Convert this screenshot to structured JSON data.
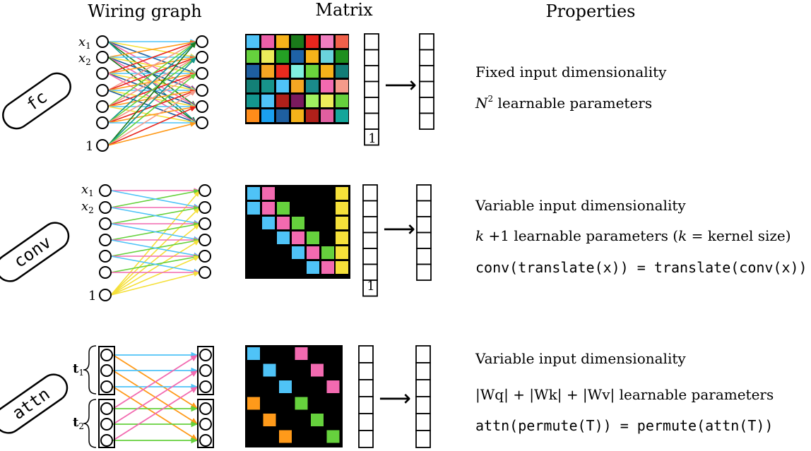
{
  "headers": {
    "wiring": "Wiring graph",
    "matrix": "Matrix",
    "properties": "Properties"
  },
  "rows": [
    {
      "id": "fc",
      "pill_label": "fc",
      "input_labels": {
        "x1": "x",
        "x1_sub": "1",
        "x2": "x",
        "x2_sub": "2",
        "bias": "1"
      },
      "vector_bias_label": "1",
      "arrow": "⟶",
      "properties": [
        {
          "text": "Fixed input dimensionality"
        },
        {
          "math": "N",
          "sup": "2",
          "text": " learnable parameters"
        }
      ],
      "matrix_colors": [
        [
          "#4fc3f7",
          "#ec5fa8",
          "#f5b21a",
          "#1a7a1a",
          "#e8261e",
          "#f07ec0",
          "#f0604a"
        ],
        [
          "#66d13d",
          "#ecec5a",
          "#24a024",
          "#1e62a6",
          "#f5b21a",
          "#6ad3dd",
          "#1f8f1f"
        ],
        [
          "#1e5fa0",
          "#f5a623",
          "#e82a1e",
          "#80f0e0",
          "#6ad33d",
          "#f5b21a",
          "#137d77"
        ],
        [
          "#138077",
          "#17948b",
          "#4fc3f7",
          "#f5a623",
          "#1a8a8a",
          "#f26ab0",
          "#f59a8a"
        ],
        [
          "#13968e",
          "#4fc3f7",
          "#b0201a",
          "#7a1a5e",
          "#a0f060",
          "#ecec5a",
          "#66d13d"
        ],
        [
          "#ff8c1a",
          "#1aa0f0",
          "#1e5fa0",
          "#f5b21a",
          "#b0201a",
          "#e05fa0",
          "#13a69a"
        ]
      ]
    },
    {
      "id": "conv",
      "pill_label": "conv",
      "input_labels": {
        "x1": "x",
        "x1_sub": "1",
        "x2": "x",
        "x2_sub": "2",
        "bias": "1"
      },
      "vector_bias_label": "1",
      "arrow": "⟶",
      "properties": [
        {
          "text": "Variable input dimensionality"
        },
        {
          "math": "k",
          "text_a": " +1 learnable parameters (",
          "math2": "k",
          "text_b": " = kernel size)"
        },
        {
          "eq": "conv(translate(x)) = translate(conv(x))"
        }
      ],
      "kernel_colors": [
        "#4fc3f7",
        "#f26ab0",
        "#66d13d"
      ],
      "bias_color": "#f5e03a"
    },
    {
      "id": "attn",
      "pill_label": "attn",
      "input_labels": {
        "t1": "t",
        "t1_sub": "1",
        "t2": "t",
        "t2_sub": "2"
      },
      "arrow": "⟶",
      "properties": [
        {
          "text": "Variable input dimensionality"
        },
        {
          "eq": "|Wq| + |Wk| + |Wv|   learnable parameters"
        },
        {
          "eq": "attn(permute(T)) = permute(attn(T))"
        }
      ],
      "attn_colors": {
        "blue": "#4fc3f7",
        "pink": "#f26ab0",
        "orange": "#ff9a1a",
        "green": "#66d13d"
      }
    }
  ]
}
